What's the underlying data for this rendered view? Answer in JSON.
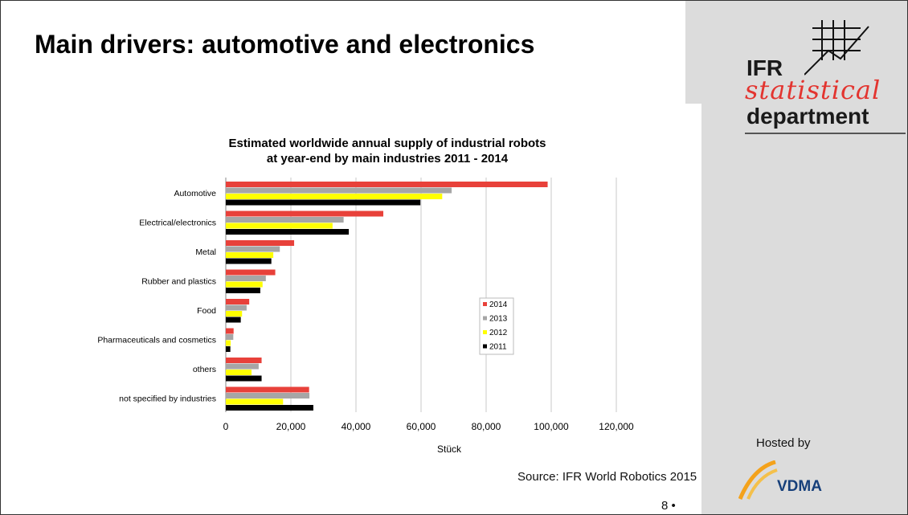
{
  "slide": {
    "title": "Main drivers: automotive and electronics",
    "logo_ifr": "IFR",
    "logo_statistical": "statistical",
    "logo_department": "department",
    "hosted_by": "Hosted by",
    "vdma": "VDMA",
    "source": "Source: IFR World Robotics 2015",
    "page_number": "8 •"
  },
  "chart_data": {
    "type": "bar",
    "orientation": "horizontal",
    "title_line1": "Estimated worldwide annual supply of industrial robots",
    "title_line2": "at year-end by main industries 2011 - 2014",
    "xlabel": "Stück",
    "ylabel": "",
    "xlim": [
      0,
      120000
    ],
    "x_ticks": [
      0,
      20000,
      40000,
      60000,
      80000,
      100000,
      120000
    ],
    "x_tick_labels": [
      "0",
      "20,000",
      "40,000",
      "60,000",
      "80,000",
      "100,000",
      "120,000"
    ],
    "grid": true,
    "legend_position": "center-right",
    "categories": [
      "Automotive",
      "Electrical/electronics",
      "Metal",
      "Rubber and plastics",
      "Food",
      "Pharmaceuticals and cosmetics",
      "others",
      "not specified by industries"
    ],
    "series": [
      {
        "name": "2014",
        "color": "#e8413a",
        "values": [
          98900,
          48400,
          21000,
          15200,
          7200,
          2400,
          11000,
          25600
        ]
      },
      {
        "name": "2013",
        "color": "#a6a6a6",
        "values": [
          69400,
          36200,
          16600,
          12300,
          6400,
          2300,
          10100,
          25700
        ]
      },
      {
        "name": "2012",
        "color": "#ffff00",
        "values": [
          66500,
          32800,
          14600,
          11300,
          5000,
          1500,
          7900,
          17600
        ]
      },
      {
        "name": "2011",
        "color": "#000000",
        "values": [
          59800,
          37800,
          14000,
          10600,
          4600,
          1400,
          11000,
          26900
        ]
      }
    ]
  }
}
